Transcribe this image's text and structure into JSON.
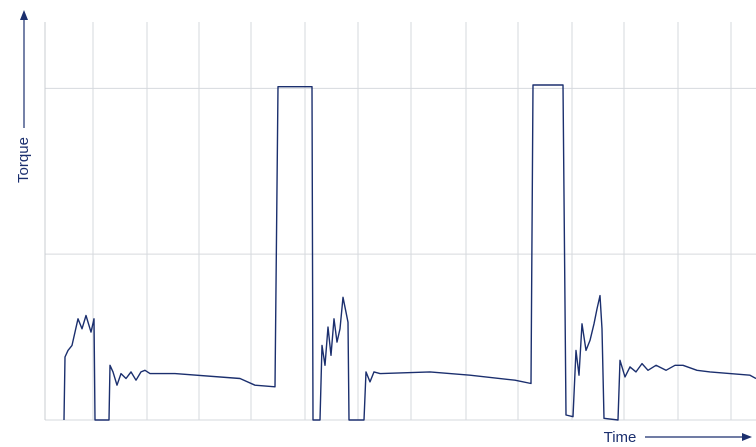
{
  "chart_data": {
    "type": "line",
    "y_label": "Torque",
    "x_label": "Time",
    "color": "#1b2f6e",
    "grid": true,
    "xlim": [
      0,
      711
    ],
    "ylim": [
      0,
      2.4
    ],
    "xticks": [
      48,
      102,
      154,
      206,
      260,
      313,
      366,
      421,
      473,
      527,
      579,
      633,
      686
    ],
    "yticks": [
      0,
      1,
      2
    ],
    "x": [
      19,
      20,
      23,
      27,
      33,
      37,
      41,
      46,
      49,
      50,
      64,
      65,
      68,
      72,
      76,
      81,
      86,
      91,
      96,
      100,
      105,
      130,
      195,
      210,
      230,
      233,
      267,
      268,
      275,
      277,
      280,
      283,
      286,
      289,
      292,
      295,
      298,
      301,
      303,
      304,
      319,
      321,
      325,
      329,
      335,
      385,
      425,
      470,
      486,
      488,
      518,
      521,
      528,
      531,
      534,
      537,
      541,
      545,
      549,
      552,
      555,
      557,
      559,
      573,
      575,
      580,
      585,
      591,
      597,
      603,
      611,
      621,
      630,
      638,
      652,
      665,
      705,
      711
    ],
    "values": [
      0,
      0.38,
      0.42,
      0.45,
      0.61,
      0.55,
      0.63,
      0.53,
      0.61,
      0,
      0,
      0.33,
      0.29,
      0.21,
      0.28,
      0.25,
      0.29,
      0.24,
      0.29,
      0.3,
      0.28,
      0.28,
      0.25,
      0.21,
      0.2,
      2.01,
      2.01,
      0,
      0,
      0.45,
      0.33,
      0.56,
      0.39,
      0.61,
      0.47,
      0.55,
      0.74,
      0.65,
      0.59,
      0,
      0,
      0.29,
      0.23,
      0.29,
      0.28,
      0.29,
      0.27,
      0.24,
      0.22,
      2.02,
      2.02,
      0.03,
      0.02,
      0.42,
      0.27,
      0.58,
      0.42,
      0.48,
      0.58,
      0.67,
      0.75,
      0.55,
      0.01,
      0,
      0.36,
      0.26,
      0.32,
      0.29,
      0.34,
      0.3,
      0.33,
      0.3,
      0.33,
      0.33,
      0.3,
      0.29,
      0.27,
      0.25
    ]
  }
}
